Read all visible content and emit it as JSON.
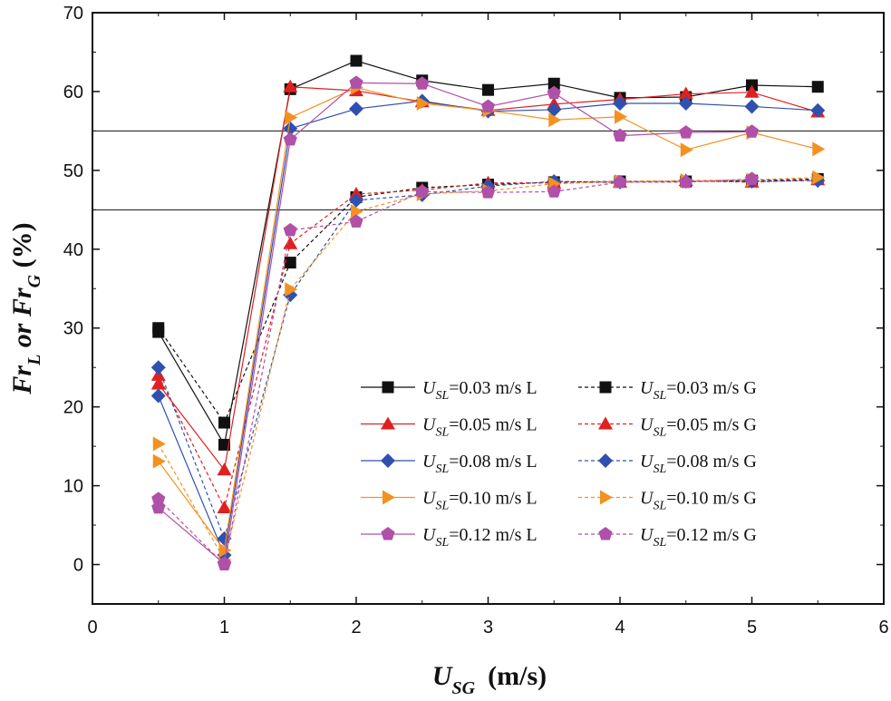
{
  "chart_data": {
    "type": "line",
    "title": "",
    "xlabel_main": "U",
    "xlabel_sub": "SG",
    "xlabel_unit": "(m/s)",
    "ylabel_parts": [
      "Fr",
      "L",
      " or ",
      "Fr",
      "G",
      " (%)"
    ],
    "xlim": [
      0,
      6
    ],
    "ylim": [
      -5,
      70
    ],
    "xticks": [
      0,
      1,
      2,
      3,
      4,
      5,
      6
    ],
    "yticks": [
      0,
      10,
      20,
      30,
      40,
      50,
      60,
      70
    ],
    "grid": false,
    "reference_lines_y": [
      55,
      45
    ],
    "x": [
      0.5,
      1,
      1.5,
      2,
      2.5,
      3,
      3.5,
      4,
      4.5,
      5,
      5.5
    ],
    "legend_position": "center-right",
    "series": [
      {
        "name_main": "U",
        "name_sub": "SL",
        "name_rest": "=0.03 m/s L",
        "phase": "L",
        "color": "#111111",
        "marker": "square",
        "dash": false,
        "values": [
          29.5,
          15.2,
          60.3,
          63.9,
          61.4,
          60.2,
          61.0,
          59.2,
          59.3,
          60.8,
          60.6
        ]
      },
      {
        "name_main": "U",
        "name_sub": "SL",
        "name_rest": "=0.03 m/s G",
        "phase": "G",
        "color": "#111111",
        "marker": "square",
        "dash": true,
        "values": [
          30.0,
          18.0,
          38.3,
          46.6,
          47.8,
          48.2,
          48.5,
          48.6,
          48.6,
          48.7,
          48.9
        ]
      },
      {
        "name_main": "U",
        "name_sub": "SL",
        "name_rest": "=0.05 m/s L",
        "phase": "L",
        "color": "#e02020",
        "marker": "triangle-up",
        "dash": false,
        "values": [
          22.9,
          12.0,
          60.6,
          60.1,
          58.7,
          57.6,
          58.4,
          59.0,
          59.7,
          59.9,
          57.4
        ]
      },
      {
        "name_main": "U",
        "name_sub": "SL",
        "name_rest": "=0.05 m/s G",
        "phase": "G",
        "color": "#e02020",
        "marker": "triangle-up",
        "dash": true,
        "values": [
          24.0,
          7.2,
          40.7,
          47.0,
          47.5,
          48.4,
          48.4,
          48.5,
          48.7,
          48.5,
          48.8
        ]
      },
      {
        "name_main": "U",
        "name_sub": "SL",
        "name_rest": "=0.08 m/s L",
        "phase": "L",
        "color": "#3050b0",
        "marker": "diamond",
        "dash": false,
        "values": [
          21.4,
          1.2,
          55.3,
          57.8,
          58.8,
          57.5,
          57.7,
          58.5,
          58.5,
          58.1,
          57.6
        ]
      },
      {
        "name_main": "U",
        "name_sub": "SL",
        "name_rest": "=0.08 m/s G",
        "phase": "G",
        "color": "#3050b0",
        "marker": "diamond",
        "dash": true,
        "values": [
          25.0,
          3.3,
          34.2,
          46.2,
          46.9,
          48.0,
          48.6,
          48.5,
          48.6,
          48.6,
          48.7
        ]
      },
      {
        "name_main": "U",
        "name_sub": "SL",
        "name_rest": "=0.10 m/s L",
        "phase": "L",
        "color": "#f39220",
        "marker": "triangle-right",
        "dash": false,
        "values": [
          13.1,
          1.8,
          56.7,
          60.5,
          58.5,
          57.6,
          56.4,
          56.8,
          52.6,
          54.8,
          52.7
        ]
      },
      {
        "name_main": "U",
        "name_sub": "SL",
        "name_rest": "=0.10 m/s G",
        "phase": "G",
        "color": "#f39220",
        "marker": "triangle-right",
        "dash": true,
        "values": [
          15.3,
          0.6,
          34.9,
          44.8,
          47.0,
          47.4,
          48.3,
          48.6,
          48.7,
          48.8,
          49.1
        ]
      },
      {
        "name_main": "U",
        "name_sub": "SL",
        "name_rest": "=0.12 m/s L",
        "phase": "L",
        "color": "#b050a8",
        "marker": "pentagon",
        "dash": false,
        "values": [
          7.2,
          0.1,
          53.9,
          61.1,
          61.0,
          58.1,
          59.8,
          54.4,
          54.8,
          54.9,
          null
        ]
      },
      {
        "name_main": "U",
        "name_sub": "SL",
        "name_rest": "=0.12 m/s G",
        "phase": "G",
        "color": "#b050a8",
        "marker": "pentagon",
        "dash": true,
        "values": [
          8.3,
          0.0,
          42.4,
          43.5,
          47.3,
          47.2,
          47.3,
          48.5,
          48.5,
          48.9,
          null
        ]
      }
    ]
  }
}
